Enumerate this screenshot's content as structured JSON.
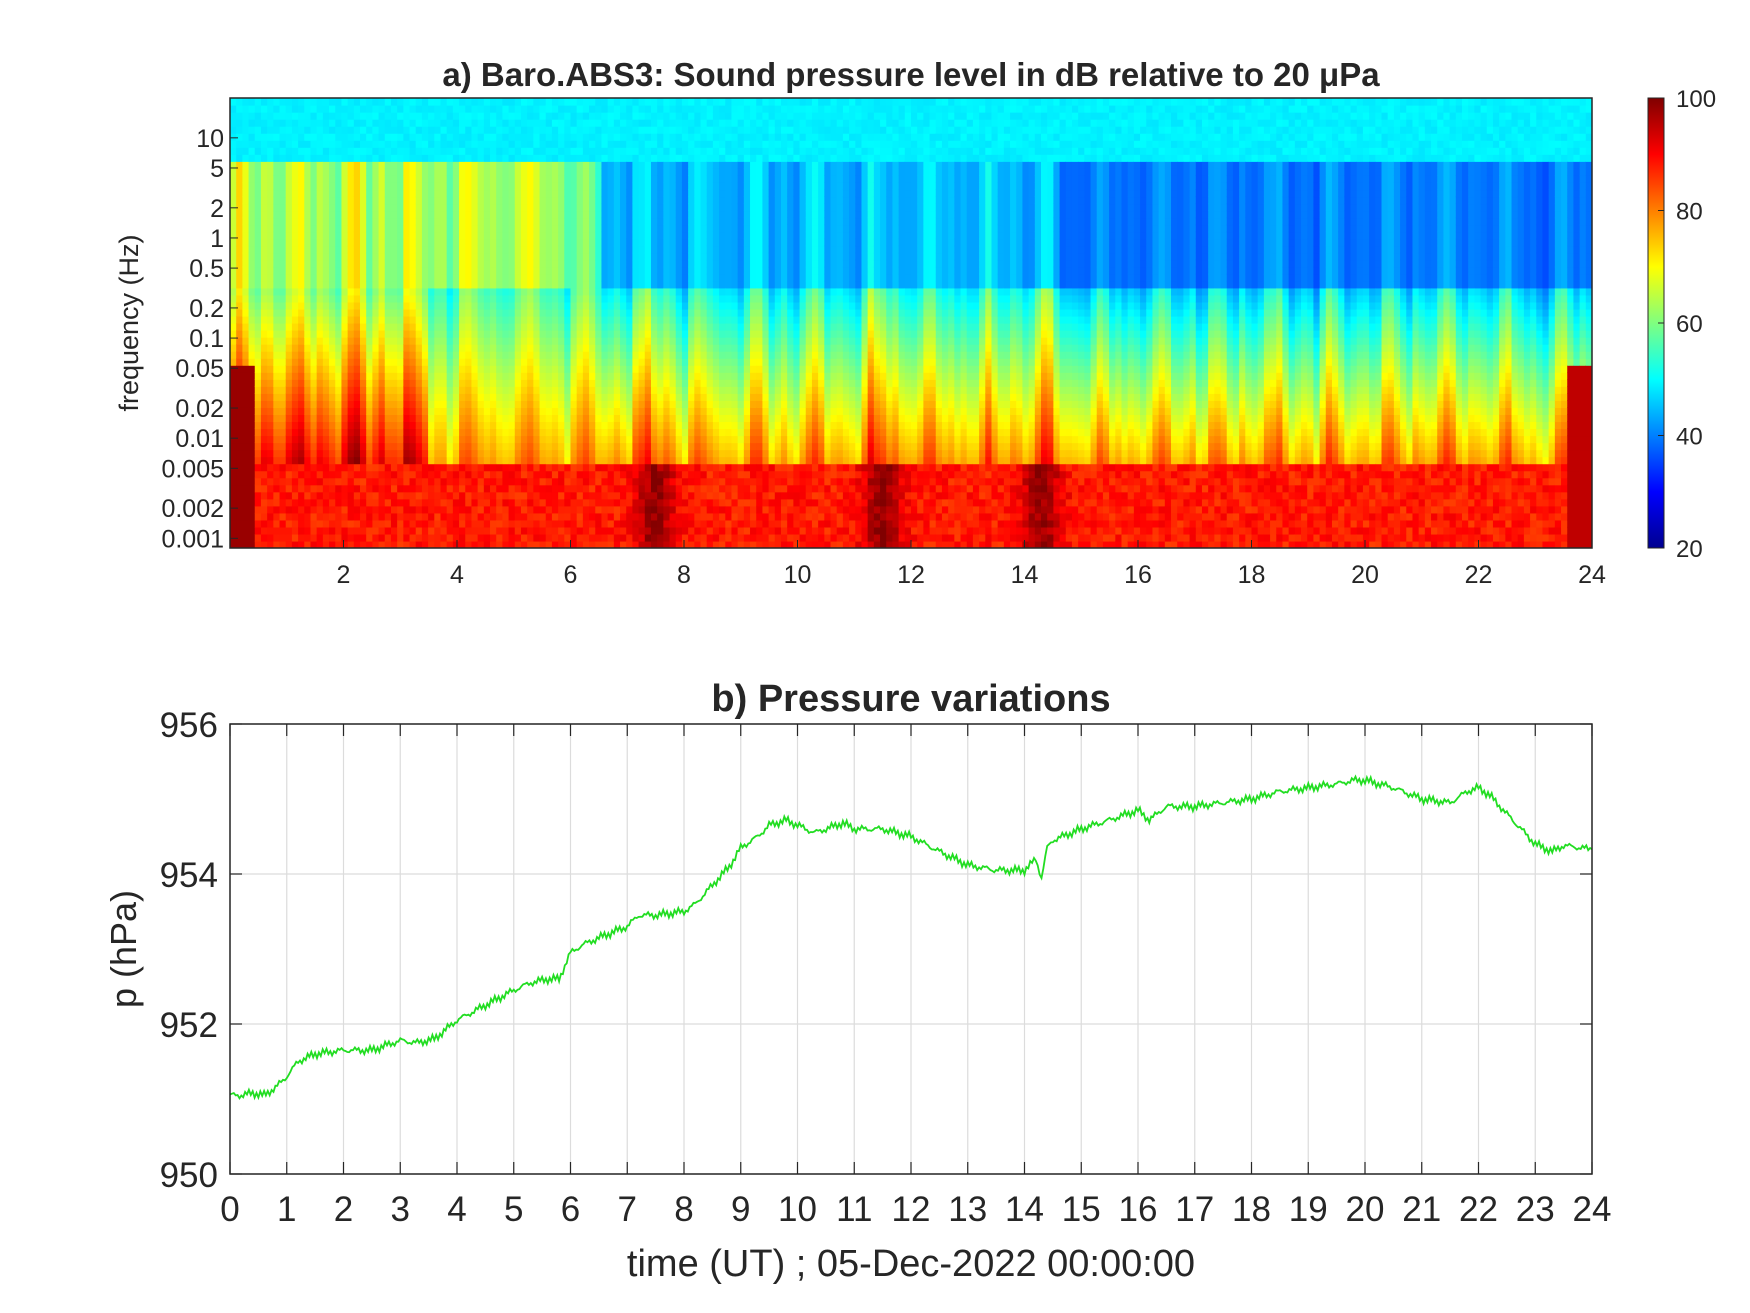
{
  "figure": {
    "background": "#ffffff"
  },
  "chart_data": [
    {
      "type": "heatmap",
      "title": "a) Baro.ABS3: Sound pressure level in dB relative to 20 μPa",
      "xlabel": "",
      "ylabel": "frequency (Hz)",
      "x_scale": "linear",
      "y_scale": "log",
      "xlim": [
        0,
        24
      ],
      "ylim": [
        0.0008,
        25
      ],
      "x_ticks": [
        2,
        4,
        6,
        8,
        10,
        12,
        14,
        16,
        18,
        20,
        22,
        24
      ],
      "x_tick_labels": [
        "2",
        "4",
        "6",
        "8",
        "10",
        "12",
        "14",
        "16",
        "18",
        "20",
        "22",
        "24"
      ],
      "y_ticks": [
        0.001,
        0.002,
        0.005,
        0.01,
        0.02,
        0.05,
        0.1,
        0.2,
        0.5,
        1,
        2,
        5,
        10
      ],
      "y_tick_labels": [
        "0.001",
        "0.002",
        "0.005",
        "0.01",
        "0.02",
        "0.05",
        "0.1",
        "0.2",
        "0.5",
        "1",
        "2",
        "5",
        "10"
      ],
      "colorbar": {
        "colormap": "jet",
        "range": [
          20,
          100
        ],
        "ticks": [
          20,
          40,
          60,
          80,
          100
        ],
        "tick_labels": [
          "20",
          "40",
          "60",
          "80",
          "100"
        ]
      },
      "description_values": {
        "high_freq_band_level_db": 48,
        "quiet_band_level_db": 38,
        "low_freq_band_level_db": 85,
        "event_times_h": [
          7.5,
          11.5,
          14.3
        ]
      }
    },
    {
      "type": "line",
      "title": "b) Pressure variations",
      "xlabel": "time (UT) ; 05-Dec-2022 00:00:00",
      "ylabel": "p (hPa)",
      "xlim": [
        0,
        24
      ],
      "ylim": [
        950,
        956
      ],
      "grid": true,
      "x_ticks": [
        0,
        1,
        2,
        3,
        4,
        5,
        6,
        7,
        8,
        9,
        10,
        11,
        12,
        13,
        14,
        15,
        16,
        17,
        18,
        19,
        20,
        21,
        22,
        23,
        24
      ],
      "x_tick_labels": [
        "0",
        "1",
        "2",
        "3",
        "4",
        "5",
        "6",
        "7",
        "8",
        "9",
        "10",
        "11",
        "12",
        "13",
        "14",
        "15",
        "16",
        "17",
        "18",
        "19",
        "20",
        "21",
        "22",
        "23",
        "24"
      ],
      "y_ticks": [
        950,
        952,
        954,
        956
      ],
      "y_tick_labels": [
        "950",
        "952",
        "954",
        "956"
      ],
      "series": [
        {
          "color": "#22dd22",
          "x": [
            0,
            0.2,
            0.4,
            0.6,
            0.8,
            1.0,
            1.2,
            1.5,
            2.0,
            2.5,
            3.0,
            3.3,
            3.6,
            4.0,
            4.5,
            5.0,
            5.3,
            5.6,
            5.8,
            6.0,
            6.2,
            6.5,
            7.0,
            7.2,
            7.5,
            8.0,
            8.2,
            8.5,
            8.8,
            9.0,
            9.3,
            9.5,
            9.8,
            10.0,
            10.3,
            10.5,
            10.8,
            11.0,
            11.5,
            12.0,
            12.5,
            13.0,
            13.5,
            14.0,
            14.2,
            14.3,
            14.4,
            14.5,
            15.0,
            15.5,
            16.0,
            16.2,
            16.5,
            17.0,
            17.5,
            18.0,
            18.5,
            19.0,
            19.5,
            19.8,
            20.0,
            20.5,
            21.0,
            21.5,
            21.8,
            22.0,
            22.2,
            22.5,
            23.0,
            23.3,
            23.5,
            23.8,
            24.0
          ],
          "values": [
            951.05,
            951.05,
            951.08,
            951.05,
            951.15,
            951.3,
            951.5,
            951.6,
            951.65,
            951.65,
            951.78,
            951.75,
            951.8,
            952.05,
            952.25,
            952.45,
            952.55,
            952.6,
            952.6,
            952.95,
            953.05,
            953.15,
            953.3,
            953.45,
            953.45,
            953.5,
            953.6,
            953.85,
            954.1,
            954.35,
            954.5,
            954.65,
            954.72,
            954.65,
            954.55,
            954.6,
            954.68,
            954.6,
            954.6,
            954.5,
            954.3,
            954.12,
            954.05,
            954.05,
            954.2,
            953.95,
            954.35,
            954.45,
            954.6,
            954.72,
            954.85,
            954.72,
            954.9,
            954.9,
            954.95,
            955.0,
            955.1,
            955.15,
            955.2,
            955.25,
            955.25,
            955.15,
            955.0,
            954.95,
            955.1,
            955.15,
            955.05,
            954.8,
            954.4,
            954.3,
            954.38,
            954.35,
            954.33
          ]
        }
      ]
    }
  ]
}
